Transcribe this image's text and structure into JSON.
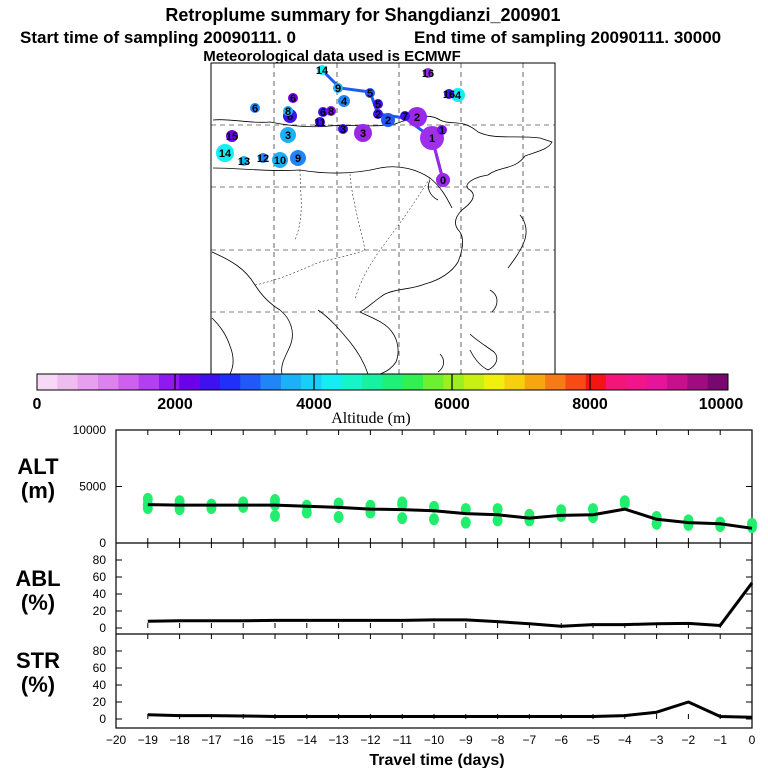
{
  "header": {
    "title": "Retroplume summary for Shangdianzi_200901",
    "start": "Start time of sampling 20090111.     0",
    "end": "End time of sampling 20090111. 30000",
    "met": "Meteorological data used is ECMWF"
  },
  "colorbar": {
    "colors": [
      "#f7d8f7",
      "#efbcef",
      "#e6a0ef",
      "#dc82ef",
      "#cf5fef",
      "#b23ff0",
      "#9018f0",
      "#6c00e8",
      "#3f10f0",
      "#2030f8",
      "#1f5af8",
      "#1f85f8",
      "#1bb0f8",
      "#16d0f8",
      "#12eef2",
      "#14f6c8",
      "#16f2a0",
      "#1ef078",
      "#32f050",
      "#6cf030",
      "#9cf020",
      "#c8f010",
      "#f0f00c",
      "#f6d00c",
      "#f7a610",
      "#f87a14",
      "#f84a14",
      "#f41414",
      "#f4147a",
      "#f2148a",
      "#e6149a",
      "#c8108c",
      "#a00c80",
      "#780870"
    ],
    "tick_labels": [
      "0",
      "2000",
      "4000",
      "6000",
      "8000",
      "10000"
    ],
    "label": "Altitude (m)"
  },
  "map": {
    "points": [
      {
        "label": "0",
        "color": "#9a28e8"
      },
      {
        "label": "1",
        "color": "#a030e8"
      },
      {
        "label": "1",
        "color": "#7a10e8"
      },
      {
        "label": "2",
        "color": "#9a28e8"
      },
      {
        "label": "2",
        "color": "#3f10f0"
      },
      {
        "label": "2",
        "color": "#1f5af8"
      },
      {
        "label": "3",
        "color": "#9a28e8"
      },
      {
        "label": "3",
        "color": "#3f10f0"
      },
      {
        "label": "3",
        "color": "#1bb0f8"
      },
      {
        "label": "4",
        "color": "#12eef2"
      },
      {
        "label": "4",
        "color": "#1f85f8"
      },
      {
        "label": "5",
        "color": "#3f10f0"
      },
      {
        "label": "5",
        "color": "#1f5af8"
      },
      {
        "label": "6",
        "color": "#6c00e8"
      },
      {
        "label": "6",
        "color": "#3f10f0"
      },
      {
        "label": "6",
        "color": "#3f10f0"
      },
      {
        "label": "6",
        "color": "#1f85f8"
      },
      {
        "label": "7",
        "color": "#3f10f0"
      },
      {
        "label": "8",
        "color": "#7a10e8"
      },
      {
        "label": "8",
        "color": "#1bb0f8"
      },
      {
        "label": "9",
        "color": "#1f85f8"
      },
      {
        "label": "9",
        "color": "#1bb0f8"
      },
      {
        "label": "10",
        "color": "#1bb0f8"
      },
      {
        "label": "11",
        "color": "#3f10f0"
      },
      {
        "label": "12",
        "color": "#1f85f8"
      },
      {
        "label": "13",
        "color": "#1bb0f8"
      },
      {
        "label": "14",
        "color": "#12eef2"
      },
      {
        "label": "14",
        "color": "#12eef2"
      },
      {
        "label": "15",
        "color": "#6c00e8"
      },
      {
        "label": "16",
        "color": "#9a28e8"
      },
      {
        "label": "16",
        "color": "#3f10f0"
      }
    ]
  },
  "chart_data": [
    {
      "type": "scatter",
      "panel_label": "ALT\n(m)",
      "ylim": [
        0,
        10000
      ],
      "y_ticks": [
        "10000",
        "5000",
        "0"
      ],
      "xlim": [
        -20,
        0
      ],
      "scatter_x": [
        -19,
        -19,
        -19,
        -18,
        -18,
        -18,
        -17,
        -17,
        -16,
        -16,
        -15,
        -15,
        -15,
        -14,
        -14,
        -13,
        -13,
        -12,
        -12,
        -11,
        -11,
        -11,
        -10,
        -10,
        -9,
        -9,
        -8,
        -8,
        -7,
        -7,
        -6,
        -6,
        -5,
        -5,
        -4,
        -4,
        -3,
        -3,
        -2,
        -2,
        -1,
        -1,
        0,
        0
      ],
      "scatter_y": [
        3900,
        3400,
        3100,
        3700,
        3300,
        3000,
        3400,
        3100,
        3600,
        3200,
        3800,
        3400,
        2400,
        3300,
        2700,
        3500,
        2300,
        3300,
        2700,
        3600,
        3400,
        2200,
        3200,
        2100,
        3000,
        1800,
        3000,
        2000,
        2500,
        2000,
        2900,
        2400,
        3000,
        2300,
        3700,
        3500,
        2300,
        1700,
        2000,
        1600,
        1800,
        1500,
        1700,
        1400
      ],
      "line_x": [
        -19,
        -18,
        -17,
        -16,
        -15,
        -14,
        -13,
        -12,
        -11,
        -10,
        -9,
        -8,
        -7,
        -6,
        -5,
        -4,
        -3,
        -2,
        -1,
        0
      ],
      "line_y": [
        3400,
        3350,
        3350,
        3350,
        3350,
        3250,
        3150,
        3000,
        2950,
        2850,
        2600,
        2500,
        2200,
        2450,
        2500,
        3000,
        2100,
        1800,
        1700,
        1300
      ]
    },
    {
      "type": "line",
      "panel_label": "ABL\n(%)",
      "ylim": [
        0,
        100
      ],
      "y_ticks": [
        "80",
        "60",
        "40",
        "20",
        "0"
      ],
      "xlim": [
        -20,
        0
      ],
      "x": [
        -19,
        -18,
        -17,
        -16,
        -15,
        -14,
        -13,
        -12,
        -11,
        -10,
        -9,
        -8,
        -7,
        -6,
        -5,
        -4,
        -3,
        -2,
        -1,
        0
      ],
      "y": [
        8,
        8.5,
        8.5,
        8.5,
        9,
        9,
        9,
        9,
        9,
        9.5,
        9.5,
        7.5,
        5,
        2,
        4,
        4,
        5,
        5.5,
        3,
        53
      ]
    },
    {
      "type": "line",
      "panel_label": "STR\n(%)",
      "ylim": [
        0,
        100
      ],
      "y_ticks": [
        "80",
        "60",
        "40",
        "20",
        "0"
      ],
      "xlim": [
        -20,
        0
      ],
      "x": [
        -19,
        -18,
        -17,
        -16,
        -15,
        -14,
        -13,
        -12,
        -11,
        -10,
        -9,
        -8,
        -7,
        -6,
        -5,
        -4,
        -3,
        -2,
        -1,
        0
      ],
      "y": [
        5,
        4,
        4,
        3.5,
        3,
        3,
        3,
        3,
        3,
        3,
        3,
        3,
        3,
        3,
        3,
        4,
        8,
        20,
        3,
        2
      ],
      "x_ticks": [
        "−20",
        "−19",
        "−18",
        "−17",
        "−16",
        "−15",
        "−14",
        "−13",
        "−12",
        "−11",
        "−10",
        "−9",
        "−8",
        "−7",
        "−6",
        "−5",
        "−4",
        "−3",
        "−2",
        "−1",
        "0"
      ],
      "xlabel": "Travel time (days)"
    }
  ]
}
